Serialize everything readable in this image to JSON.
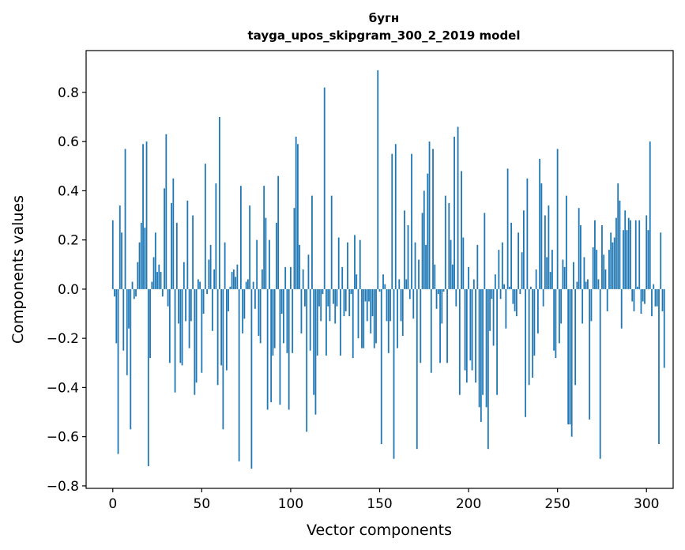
{
  "chart_data": {
    "type": "bar",
    "title_line1": "бугн",
    "title_line2": "tayga_upos_skipgram_300_2_2019 model",
    "xlabel": "Vector components",
    "ylabel": "Components values",
    "xlim": [
      -15,
      315
    ],
    "ylim": [
      -0.81,
      0.97
    ],
    "x_ticks": [
      0,
      50,
      100,
      150,
      200,
      250,
      300
    ],
    "y_ticks": [
      -0.8,
      -0.6,
      -0.4,
      -0.2,
      0.0,
      0.2,
      0.4,
      0.6,
      0.8
    ],
    "x_tick_labels": [
      "0",
      "50",
      "100",
      "150",
      "200",
      "250",
      "300"
    ],
    "y_tick_labels": [
      "−0.8",
      "−0.6",
      "−0.4",
      "−0.2",
      "0.0",
      "0.2",
      "0.4",
      "0.6",
      "0.8"
    ],
    "bar_color": "#1f77b4",
    "series": [
      {
        "name": "бугн",
        "values": [
          0.28,
          -0.03,
          -0.22,
          -0.67,
          0.34,
          0.23,
          -0.25,
          0.57,
          -0.35,
          -0.16,
          -0.57,
          0.03,
          -0.04,
          -0.03,
          0.11,
          0.19,
          0.27,
          0.59,
          0.25,
          0.6,
          -0.72,
          -0.28,
          0.03,
          0.13,
          0.23,
          0.07,
          0.1,
          0.07,
          -0.03,
          0.41,
          0.63,
          -0.07,
          -0.3,
          0.35,
          0.45,
          -0.42,
          0.27,
          -0.14,
          -0.3,
          -0.31,
          0.11,
          -0.13,
          0.36,
          -0.24,
          -0.13,
          0.3,
          -0.43,
          -0.38,
          0.04,
          0.03,
          -0.34,
          -0.1,
          0.51,
          -0.02,
          0.12,
          0.18,
          -0.17,
          0.08,
          0.43,
          -0.39,
          0.7,
          -0.31,
          -0.57,
          0.19,
          -0.33,
          -0.09,
          0.01,
          0.07,
          0.08,
          0.05,
          0.1,
          -0.7,
          0.42,
          -0.18,
          -0.12,
          0.03,
          0.04,
          0.34,
          -0.73,
          0.03,
          -0.08,
          0.2,
          -0.19,
          -0.22,
          0.08,
          0.42,
          0.29,
          -0.49,
          0.2,
          -0.46,
          -0.27,
          -0.24,
          0.27,
          0.46,
          -0.47,
          -0.1,
          -0.22,
          0.09,
          -0.26,
          -0.49,
          0.09,
          -0.26,
          0.33,
          0.62,
          0.59,
          0.18,
          -0.18,
          0.08,
          -0.07,
          -0.58,
          0.14,
          -0.25,
          0.38,
          -0.43,
          -0.51,
          -0.27,
          -0.07,
          -0.13,
          -0.02,
          0.82,
          -0.27,
          -0.07,
          -0.13,
          0.38,
          -0.06,
          -0.14,
          -0.07,
          0.21,
          -0.27,
          0.09,
          -0.11,
          -0.09,
          0.19,
          -0.11,
          -0.02,
          -0.28,
          0.22,
          0.06,
          -0.2,
          0.2,
          -0.24,
          -0.24,
          -0.05,
          -0.13,
          -0.05,
          -0.18,
          -0.11,
          -0.24,
          -0.22,
          0.89,
          -0.01,
          -0.63,
          0.06,
          0.02,
          -0.13,
          -0.26,
          -0.13,
          0.55,
          -0.69,
          0.59,
          -0.24,
          0.04,
          -0.13,
          -0.19,
          0.32,
          0.04,
          0.26,
          -0.04,
          0.55,
          -0.12,
          0.19,
          -0.65,
          0.12,
          -0.3,
          0.31,
          0.4,
          0.18,
          0.47,
          0.6,
          -0.34,
          0.57,
          0.1,
          -0.08,
          -0.02,
          -0.3,
          -0.14,
          -0.01,
          0.38,
          -0.3,
          0.35,
          0.2,
          0.1,
          0.62,
          -0.07,
          0.66,
          -0.43,
          0.48,
          0.21,
          -0.33,
          -0.38,
          0.09,
          -0.29,
          -0.33,
          0.04,
          -0.38,
          0.18,
          -0.48,
          -0.54,
          -0.43,
          0.31,
          -0.48,
          -0.65,
          -0.17,
          -0.04,
          -0.23,
          0.06,
          -0.43,
          0.16,
          -0.04,
          0.19,
          0.02,
          -0.16,
          0.49,
          0.01,
          0.27,
          -0.06,
          -0.09,
          -0.11,
          0.23,
          -0.02,
          0.15,
          0.32,
          -0.52,
          0.45,
          -0.39,
          0.01,
          -0.36,
          -0.27,
          0.08,
          -0.18,
          0.53,
          0.43,
          -0.07,
          0.3,
          0.13,
          0.34,
          0.07,
          0.16,
          -0.25,
          -0.28,
          0.57,
          -0.22,
          -0.14,
          0.12,
          0.09,
          0.38,
          -0.55,
          -0.55,
          -0.6,
          0.11,
          -0.39,
          0.03,
          0.33,
          0.26,
          -0.14,
          0.13,
          0.03,
          0.04,
          -0.53,
          -0.13,
          0.17,
          0.28,
          0.16,
          0.04,
          -0.69,
          0.26,
          0.14,
          0.08,
          -0.09,
          0.16,
          0.23,
          0.19,
          0.21,
          0.29,
          0.43,
          0.36,
          -0.16,
          0.24,
          0.32,
          0.24,
          0.29,
          0.28,
          -0.05,
          -0.09,
          0.28,
          0.01,
          0.28,
          -0.1,
          -0.05,
          -0.06,
          0.3,
          0.24,
          0.6,
          -0.11,
          0.02,
          -0.07,
          -0.07,
          -0.63,
          0.23,
          -0.09,
          -0.32
        ]
      }
    ]
  }
}
